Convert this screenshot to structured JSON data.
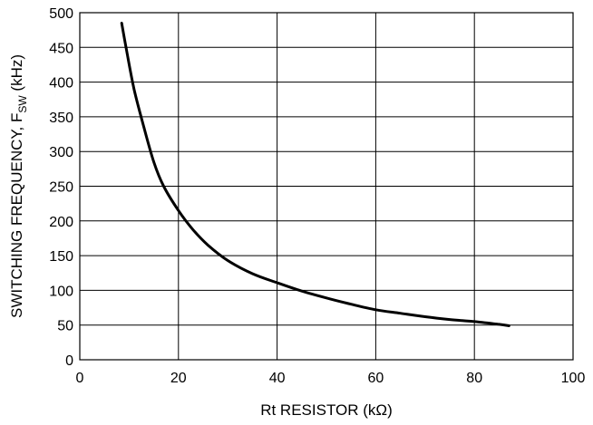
{
  "chart_data": {
    "type": "line",
    "title": "",
    "xlabel": "Rt RESISTOR (kΩ)",
    "ylabel_main": "SWITCHING FREQUENCY, F",
    "ylabel_sub": "SW",
    "ylabel_unit": " (kHz)",
    "xlim": [
      0,
      100
    ],
    "ylim": [
      0,
      500
    ],
    "xticks": [
      "0",
      "20",
      "40",
      "60",
      "80",
      "100"
    ],
    "yticks": [
      "0",
      "50",
      "100",
      "150",
      "200",
      "250",
      "300",
      "350",
      "400",
      "450",
      "500"
    ],
    "grid": true,
    "series": [
      {
        "x": [
          8.5,
          9.5,
          11,
          13,
          15,
          17,
          20,
          23,
          26,
          30,
          35,
          40,
          45,
          50,
          55,
          60,
          65,
          70,
          75,
          80,
          85,
          87
        ],
        "y": [
          485,
          445,
          390,
          335,
          285,
          250,
          215,
          187,
          165,
          143,
          124,
          111,
          99,
          89,
          80,
          72,
          67,
          62,
          58,
          55,
          51,
          49
        ]
      }
    ]
  }
}
